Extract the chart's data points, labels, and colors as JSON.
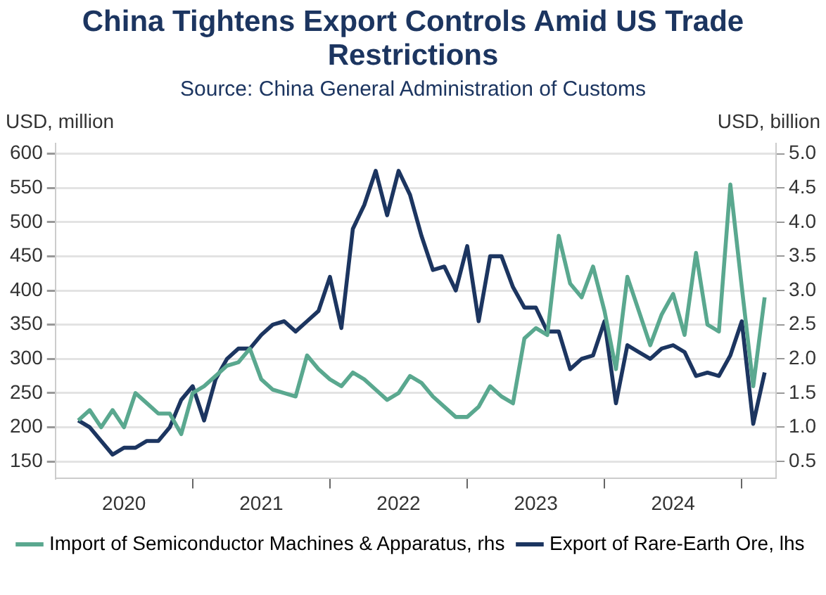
{
  "chart_data": {
    "type": "line",
    "title": "China Tightens Export Controls Amid US Trade Restrictions",
    "subtitle": "Source: China General Administration of Customs",
    "ylabel": "USD, million",
    "y2label": "USD, billion",
    "x": [
      "2020-03",
      "2020-04",
      "2020-05",
      "2020-06",
      "2020-07",
      "2020-08",
      "2020-09",
      "2020-10",
      "2020-11",
      "2020-12",
      "2021-01",
      "2021-02",
      "2021-03",
      "2021-04",
      "2021-05",
      "2021-06",
      "2021-07",
      "2021-08",
      "2021-09",
      "2021-10",
      "2021-11",
      "2021-12",
      "2022-01",
      "2022-02",
      "2022-03",
      "2022-04",
      "2022-05",
      "2022-06",
      "2022-07",
      "2022-08",
      "2022-09",
      "2022-10",
      "2022-11",
      "2022-12",
      "2023-01",
      "2023-02",
      "2023-03",
      "2023-04",
      "2023-05",
      "2023-06",
      "2023-07",
      "2023-08",
      "2023-09",
      "2023-10",
      "2023-11",
      "2023-12",
      "2024-01",
      "2024-02",
      "2024-03",
      "2024-04",
      "2024-05",
      "2024-06",
      "2024-07",
      "2024-08",
      "2024-09",
      "2024-10",
      "2024-11",
      "2024-12",
      "2025-01",
      "2025-02",
      "2025-03"
    ],
    "series": [
      {
        "name": "Import of Semiconductor Machines & Apparatus, rhs",
        "color": "#5aa88f",
        "axis": "y2",
        "values": [
          1.1,
          1.25,
          1.0,
          1.25,
          1.0,
          1.5,
          1.35,
          1.2,
          1.2,
          0.9,
          1.5,
          1.6,
          1.75,
          1.9,
          1.95,
          2.15,
          1.7,
          1.55,
          1.5,
          1.45,
          2.05,
          1.85,
          1.7,
          1.6,
          1.8,
          1.7,
          1.55,
          1.4,
          1.5,
          1.75,
          1.65,
          1.45,
          1.3,
          1.15,
          1.15,
          1.3,
          1.6,
          1.45,
          1.35,
          2.3,
          2.45,
          2.35,
          3.8,
          3.1,
          2.9,
          3.35,
          2.7,
          1.85,
          3.2,
          2.7,
          2.2,
          2.65,
          2.95,
          2.35,
          3.55,
          2.5,
          2.4,
          4.55,
          3.05,
          1.6,
          2.9
        ]
      },
      {
        "name": "Export of Rare-Earth Ore, lhs",
        "color": "#1c3560",
        "values": [
          210,
          200,
          180,
          160,
          170,
          170,
          180,
          180,
          200,
          240,
          260,
          210,
          270,
          300,
          315,
          315,
          335,
          350,
          355,
          340,
          355,
          370,
          420,
          345,
          490,
          525,
          575,
          510,
          575,
          540,
          480,
          430,
          435,
          400,
          465,
          355,
          450,
          450,
          405,
          375,
          375,
          340,
          340,
          285,
          300,
          305,
          355,
          235,
          320,
          310,
          300,
          315,
          320,
          310,
          275,
          280,
          275,
          305,
          355,
          205,
          280
        ]
      }
    ],
    "xlim": [
      "2020-01",
      "2025-04"
    ],
    "xticks": [
      {
        "value": "2020-07",
        "label": "2020"
      },
      {
        "value": "2021-01",
        "label": null
      },
      {
        "value": "2021-07",
        "label": "2021"
      },
      {
        "value": "2022-01",
        "label": null
      },
      {
        "value": "2022-07",
        "label": "2022"
      },
      {
        "value": "2023-01",
        "label": null
      },
      {
        "value": "2023-07",
        "label": "2023"
      },
      {
        "value": "2024-01",
        "label": null
      },
      {
        "value": "2024-07",
        "label": "2024"
      },
      {
        "value": "2025-01",
        "label": null
      }
    ],
    "ylim": [
      125,
      615
    ],
    "yticks": [
      150,
      200,
      250,
      300,
      350,
      400,
      450,
      500,
      550,
      600
    ],
    "y2lim": [
      0.25,
      5.15
    ],
    "y2ticks": [
      0.5,
      {
        "value": 1,
        "label": "1.0"
      },
      1.5,
      {
        "value": 2,
        "label": "2.0"
      },
      2.5,
      {
        "value": 3,
        "label": "3.0"
      },
      3.5,
      {
        "value": 4,
        "label": "4.0"
      },
      4.5,
      {
        "value": 5,
        "label": "5.0"
      }
    ],
    "grid": "y",
    "legend": "bottom",
    "marker": "none",
    "line_style": "solid"
  }
}
